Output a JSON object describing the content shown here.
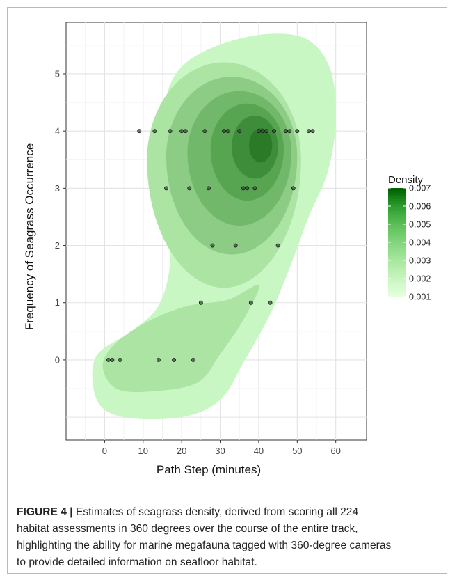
{
  "chart_data": {
    "type": "contour",
    "xlabel": "Path Step (minutes)",
    "ylabel": "Frequency of Seagrass Occurrence",
    "xlim": [
      -10,
      68
    ],
    "ylim": [
      -1.4,
      5.9
    ],
    "x_ticks": [
      "0",
      "10",
      "20",
      "30",
      "40",
      "50",
      "60"
    ],
    "y_ticks": [
      "0",
      "1",
      "2",
      "3",
      "4",
      "5"
    ],
    "grid": true,
    "legend": {
      "title": "Density",
      "labels": [
        "0.007",
        "0.006",
        "0.005",
        "0.004",
        "0.003",
        "0.002",
        "0.001"
      ],
      "colors": [
        "#006400",
        "#2f9e30",
        "#5cbf58",
        "#83d57d",
        "#a6e79e",
        "#c6f5bf",
        "#e3ffdc"
      ],
      "placement": "right"
    },
    "fill_colors": [
      "#c9f7c3",
      "#abe4a3",
      "#8ccc84",
      "#71b86a",
      "#57a451",
      "#3e8d3a",
      "#2a7a28"
    ],
    "points": [
      {
        "x": 9,
        "y": 4
      },
      {
        "x": 13,
        "y": 4
      },
      {
        "x": 17,
        "y": 4
      },
      {
        "x": 20,
        "y": 4
      },
      {
        "x": 21,
        "y": 4
      },
      {
        "x": 26,
        "y": 4
      },
      {
        "x": 31,
        "y": 4
      },
      {
        "x": 32,
        "y": 4
      },
      {
        "x": 35,
        "y": 4
      },
      {
        "x": 40,
        "y": 4
      },
      {
        "x": 41,
        "y": 4
      },
      {
        "x": 42,
        "y": 4
      },
      {
        "x": 44,
        "y": 4
      },
      {
        "x": 47,
        "y": 4
      },
      {
        "x": 48,
        "y": 4
      },
      {
        "x": 50,
        "y": 4
      },
      {
        "x": 53,
        "y": 4
      },
      {
        "x": 54,
        "y": 4
      },
      {
        "x": 16,
        "y": 3
      },
      {
        "x": 22,
        "y": 3
      },
      {
        "x": 27,
        "y": 3
      },
      {
        "x": 36,
        "y": 3
      },
      {
        "x": 37,
        "y": 3
      },
      {
        "x": 39,
        "y": 3
      },
      {
        "x": 49,
        "y": 3
      },
      {
        "x": 28,
        "y": 2
      },
      {
        "x": 34,
        "y": 2
      },
      {
        "x": 45,
        "y": 2
      },
      {
        "x": 25,
        "y": 1
      },
      {
        "x": 38,
        "y": 1
      },
      {
        "x": 43,
        "y": 1
      },
      {
        "x": 1,
        "y": 0
      },
      {
        "x": 2,
        "y": 0
      },
      {
        "x": 4,
        "y": 0
      },
      {
        "x": 14,
        "y": 0
      },
      {
        "x": 18,
        "y": 0
      },
      {
        "x": 23,
        "y": 0
      }
    ]
  },
  "caption": {
    "label": "FIGURE 4 |",
    "lines": [
      " Estimates of seagrass density, derived from scoring all 224",
      "habitat assessments in 360 degrees over the course of the entire track,",
      "highlighting the ability for marine megafauna tagged with 360-degree cameras",
      "to provide detailed information on seafloor habitat."
    ]
  }
}
